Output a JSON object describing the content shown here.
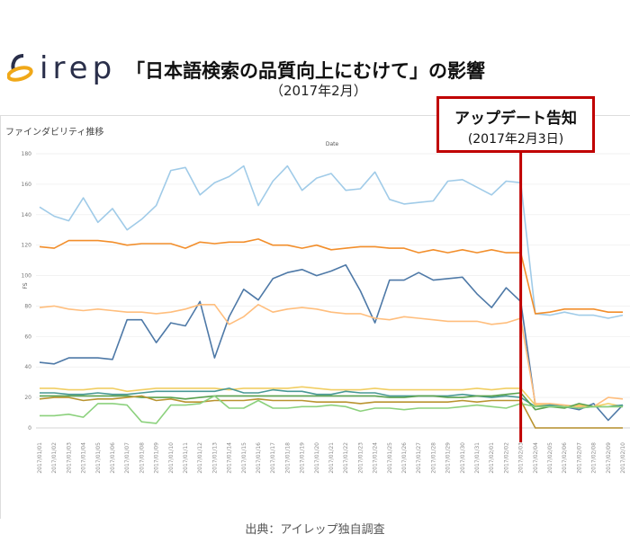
{
  "header": {
    "logo_text": "irep",
    "title": "「日本語検索の品質向上にむけて」の影響",
    "subtitle": "（2017年2月）"
  },
  "callout": {
    "title": "アップデート告知",
    "date": "(2017年2月3日)",
    "color": "#c00000"
  },
  "source": "出典：アイレップ独自調査",
  "chart_data": {
    "type": "line",
    "title": "ファインダビリティ推移",
    "xlabel": "Date",
    "ylabel": "FS",
    "ylim": [
      0,
      180
    ],
    "yticks": [
      0,
      20,
      40,
      60,
      80,
      100,
      120,
      140,
      160,
      180
    ],
    "grid": true,
    "event_marker": "2017/02/03",
    "x": [
      "2017/01/01",
      "2017/01/02",
      "2017/01/03",
      "2017/01/04",
      "2017/01/05",
      "2017/01/06",
      "2017/01/07",
      "2017/01/08",
      "2017/01/09",
      "2017/01/10",
      "2017/01/11",
      "2017/01/12",
      "2017/01/13",
      "2017/01/14",
      "2017/01/15",
      "2017/01/16",
      "2017/01/17",
      "2017/01/18",
      "2017/01/19",
      "2017/01/20",
      "2017/01/21",
      "2017/01/22",
      "2017/01/23",
      "2017/01/24",
      "2017/01/25",
      "2017/01/26",
      "2017/01/27",
      "2017/01/28",
      "2017/01/29",
      "2017/01/30",
      "2017/01/31",
      "2017/02/01",
      "2017/02/02",
      "2017/02/03",
      "2017/02/04",
      "2017/02/05",
      "2017/02/06",
      "2017/02/07",
      "2017/02/08",
      "2017/02/09",
      "2017/02/10"
    ],
    "series": [
      {
        "name": "light-blue",
        "color": "#a0cbe8",
        "values": [
          145,
          139,
          136,
          151,
          135,
          144,
          130,
          137,
          146,
          169,
          171,
          153,
          161,
          165,
          172,
          146,
          162,
          172,
          156,
          164,
          167,
          156,
          157,
          168,
          150,
          147,
          148,
          149,
          162,
          163,
          158,
          153,
          162,
          161,
          75,
          74,
          76,
          74,
          74,
          72,
          74
        ]
      },
      {
        "name": "orange",
        "color": "#f28e2b",
        "values": [
          119,
          118,
          123,
          123,
          123,
          122,
          120,
          121,
          121,
          121,
          118,
          122,
          121,
          122,
          122,
          124,
          120,
          120,
          118,
          120,
          117,
          118,
          119,
          119,
          118,
          118,
          115,
          117,
          115,
          117,
          115,
          117,
          115,
          115,
          75,
          76,
          78,
          78,
          78,
          76,
          76
        ]
      },
      {
        "name": "blue",
        "color": "#4e79a7",
        "values": [
          43,
          42,
          46,
          46,
          46,
          45,
          71,
          71,
          56,
          69,
          67,
          83,
          46,
          73,
          91,
          84,
          98,
          102,
          104,
          100,
          103,
          107,
          90,
          69,
          97,
          97,
          102,
          97,
          98,
          99,
          88,
          79,
          92,
          83,
          15,
          14,
          14,
          12,
          16,
          5,
          15
        ]
      },
      {
        "name": "light-orange",
        "color": "#ffbe7d",
        "values": [
          79,
          80,
          78,
          77,
          78,
          77,
          76,
          76,
          75,
          76,
          78,
          81,
          81,
          68,
          73,
          81,
          76,
          78,
          79,
          78,
          76,
          75,
          75,
          72,
          71,
          73,
          72,
          71,
          70,
          70,
          70,
          68,
          69,
          72,
          16,
          16,
          15,
          14,
          14,
          20,
          19
        ]
      },
      {
        "name": "yellow",
        "color": "#f1ce63",
        "values": [
          26,
          26,
          25,
          25,
          26,
          26,
          24,
          25,
          26,
          26,
          26,
          26,
          26,
          25,
          26,
          26,
          26,
          26,
          27,
          26,
          25,
          25,
          25,
          26,
          25,
          25,
          25,
          25,
          25,
          25,
          26,
          25,
          26,
          26,
          15,
          15,
          14,
          15,
          14,
          16,
          14
        ]
      },
      {
        "name": "teal",
        "color": "#499894",
        "values": [
          23,
          23,
          22,
          22,
          23,
          22,
          22,
          23,
          24,
          24,
          24,
          24,
          24,
          26,
          23,
          23,
          25,
          24,
          24,
          22,
          22,
          24,
          23,
          23,
          21,
          21,
          21,
          21,
          21,
          22,
          21,
          20,
          21,
          20,
          14,
          15,
          14,
          13,
          14,
          14,
          15
        ]
      },
      {
        "name": "green",
        "color": "#59a14f",
        "values": [
          21,
          21,
          21,
          21,
          21,
          21,
          21,
          20,
          20,
          20,
          19,
          20,
          21,
          21,
          21,
          21,
          21,
          21,
          21,
          21,
          21,
          21,
          21,
          21,
          20,
          20,
          21,
          21,
          20,
          20,
          21,
          21,
          22,
          23,
          12,
          14,
          13,
          16,
          14,
          14,
          14
        ]
      },
      {
        "name": "gold",
        "color": "#b9932f",
        "values": [
          19,
          20,
          20,
          18,
          19,
          19,
          20,
          21,
          18,
          19,
          17,
          17,
          18,
          18,
          18,
          19,
          18,
          18,
          18,
          17,
          17,
          17,
          16,
          17,
          17,
          17,
          17,
          17,
          17,
          18,
          17,
          18,
          18,
          18,
          0,
          0,
          0,
          0,
          0,
          0,
          0
        ]
      },
      {
        "name": "light-green",
        "color": "#8cd17d",
        "values": [
          8,
          8,
          9,
          7,
          16,
          16,
          15,
          4,
          3,
          15,
          15,
          16,
          21,
          13,
          13,
          18,
          13,
          13,
          14,
          14,
          15,
          14,
          11,
          13,
          13,
          12,
          13,
          13,
          13,
          14,
          15,
          14,
          13,
          16,
          14,
          14,
          14,
          13,
          14,
          14,
          14
        ]
      }
    ]
  }
}
